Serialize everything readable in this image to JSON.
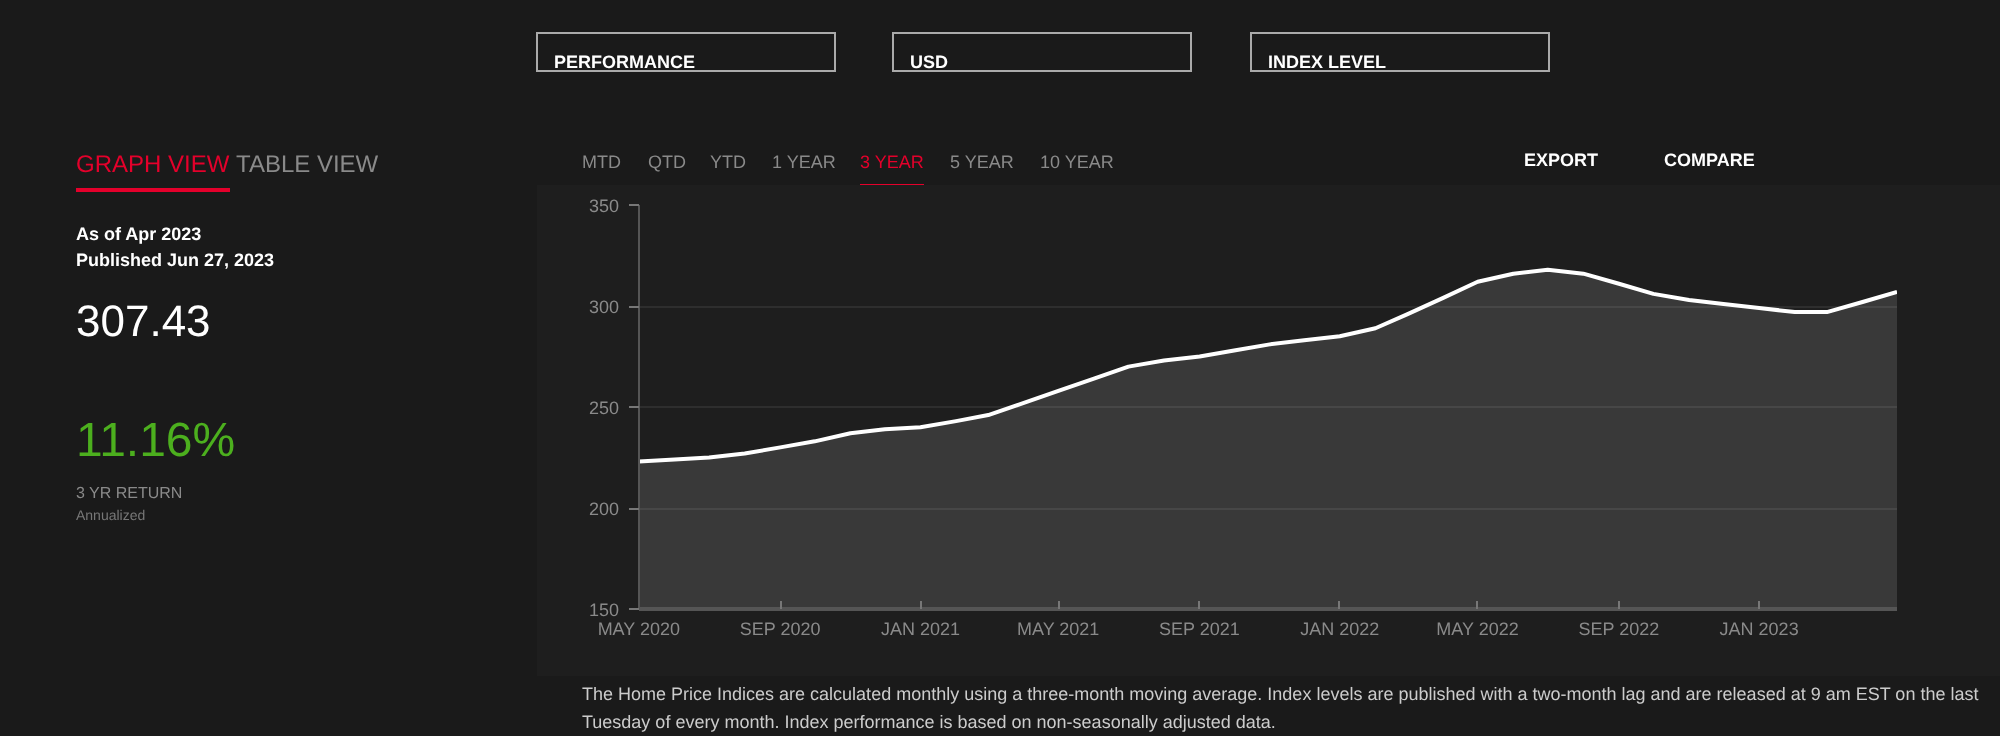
{
  "chart_data": {
    "type": "area",
    "x": [
      "2020-05",
      "2020-06",
      "2020-07",
      "2020-08",
      "2020-09",
      "2020-10",
      "2020-11",
      "2020-12",
      "2021-01",
      "2021-02",
      "2021-03",
      "2021-04",
      "2021-05",
      "2021-06",
      "2021-07",
      "2021-08",
      "2021-09",
      "2021-10",
      "2021-11",
      "2021-12",
      "2022-01",
      "2022-02",
      "2022-03",
      "2022-04",
      "2022-05",
      "2022-06",
      "2022-07",
      "2022-08",
      "2022-09",
      "2022-10",
      "2022-11",
      "2022-12",
      "2023-01",
      "2023-02",
      "2023-03",
      "2023-04",
      "2023-05"
    ],
    "series": [
      {
        "color": "#ffffff",
        "values": [
          223,
          224,
          225,
          227,
          230,
          233,
          237,
          239,
          240,
          243,
          246,
          252,
          258,
          264,
          270,
          273,
          275,
          278,
          281,
          283,
          285,
          289,
          296,
          304,
          312,
          316,
          318,
          316,
          311,
          306,
          303,
          301,
          299,
          297,
          297,
          302,
          307
        ]
      }
    ],
    "xlim": [
      "2020-05",
      "2023-05"
    ],
    "xticks": [
      {
        "value": "2020-05",
        "label": "MAY 2020"
      },
      {
        "value": "2020-09",
        "label": "SEP 2020"
      },
      {
        "value": "2021-01",
        "label": "JAN 2021"
      },
      {
        "value": "2021-05",
        "label": "MAY 2021"
      },
      {
        "value": "2021-09",
        "label": "SEP 2021"
      },
      {
        "value": "2022-01",
        "label": "JAN 2022"
      },
      {
        "value": "2022-05",
        "label": "MAY 2022"
      },
      {
        "value": "2022-09",
        "label": "SEP 2022"
      },
      {
        "value": "2023-01",
        "label": "JAN 2023"
      }
    ],
    "ylim": [
      150,
      350
    ],
    "yticks": [
      150,
      200,
      250,
      300,
      350
    ],
    "grid": "y",
    "marker": "none",
    "line_style": "solid",
    "annotations": [
      "PERFORMANCE",
      "USD",
      "INDEX LEVEL",
      "GRAPH VIEW",
      "TABLE VIEW",
      "As of Apr 2023",
      "Published Jun 27, 2023",
      "307.43",
      "11.16%",
      "3 YR RETURN",
      "Annualized",
      "MTD",
      "QTD",
      "YTD",
      "1 YEAR",
      "3 YEAR",
      "5 YEAR",
      "10 YEAR",
      "EXPORT",
      "COMPARE",
      "The Home Price Indices are calculated monthly using a three-month moving average. Index levels are published with a two-month lag and are released at 9 am EST on the last Tuesday of every month. Index performance is based on non-seasonally adjusted data."
    ]
  }
}
